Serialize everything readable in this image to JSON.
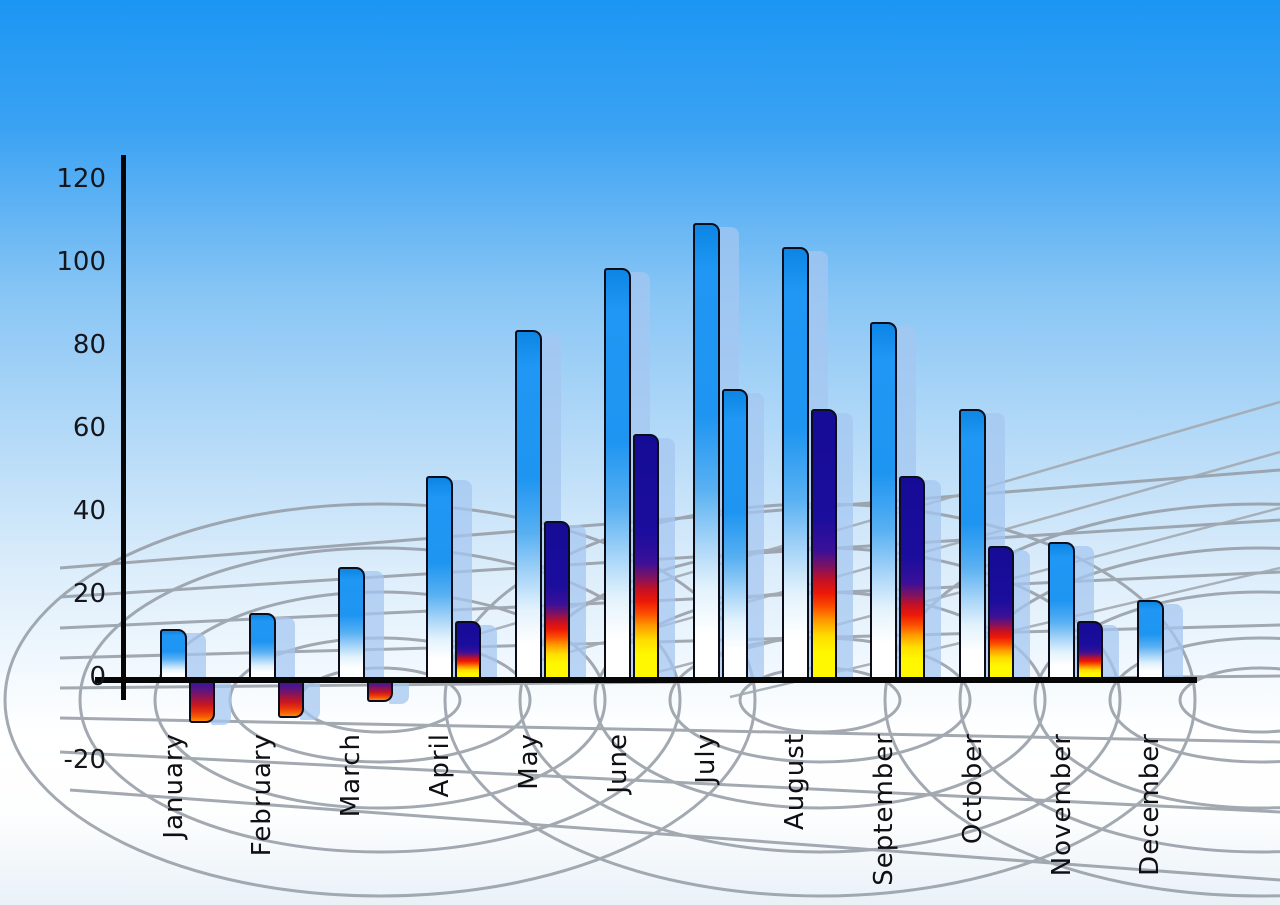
{
  "chart_data": {
    "type": "bar",
    "title": "",
    "legend": "none",
    "grid": "perspective-wireframe-decoration",
    "categories": [
      "January",
      "February",
      "March",
      "April",
      "May",
      "June",
      "July",
      "August",
      "September",
      "October",
      "November",
      "December"
    ],
    "series": [
      {
        "name": "primary",
        "style": "blue-white-gradient",
        "values": [
          12,
          16,
          27,
          49,
          84,
          99,
          110,
          104,
          86,
          65,
          33,
          19
        ]
      },
      {
        "name": "secondary",
        "style": "navy-red-yellow-gradient",
        "values": [
          -10,
          -9,
          -5,
          14,
          38,
          59,
          70,
          65,
          49,
          32,
          14,
          null
        ],
        "bar_styles": [
          "hot",
          "hot",
          "hot",
          "hot",
          "hot",
          "hot",
          "blue",
          "hot",
          "hot",
          "hot",
          "hot",
          null
        ]
      }
    ],
    "y_axis": {
      "min": -20,
      "max": 120,
      "tick_step": 20,
      "ticks": [
        120,
        100,
        80,
        60,
        40,
        20,
        0,
        -20
      ]
    },
    "x_axis": {
      "labels_rotated_degrees": -90
    },
    "shadow_bars": "each bar has a translucent light-blue 3d shadow copy offset right"
  },
  "colors": {
    "sky_top": "#1b96f3",
    "sky_bottom": "#e9f1f8",
    "bar_blue_top": "#0c85e4",
    "bar_blue_mid": "#1e95f1",
    "bar_blue_bottom": "#ffffff",
    "bar_hot_top": "#150c96",
    "bar_hot_mid": "#ec1807",
    "bar_hot_bottom": "#fff900",
    "bar_neg_top": "#33139a",
    "bar_neg_bottom": "#ff8c00",
    "bar_outline": "#0d0d1a",
    "shadow_bar": "rgba(164,199,240,0.74)",
    "grid_line": "#949ba4",
    "axis": "#060606",
    "label_text": "#15151c"
  }
}
